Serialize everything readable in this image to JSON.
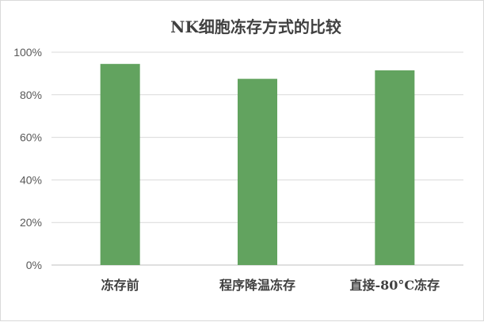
{
  "chart_data": {
    "type": "bar",
    "title": "NK细胞冻存方式的比较",
    "categories": [
      "冻存前",
      "程序降温冻存",
      "直接-80°C冻存"
    ],
    "series": [
      {
        "values": [
          94.5,
          87.5,
          91.5
        ]
      }
    ],
    "ylim": [
      0,
      100
    ],
    "yticks": [
      "0%",
      "20%",
      "40%",
      "60%",
      "80%",
      "100%"
    ],
    "xlabel": "",
    "ylabel": "",
    "grid": true,
    "legend": "none",
    "bar_color": "#62a35f"
  }
}
